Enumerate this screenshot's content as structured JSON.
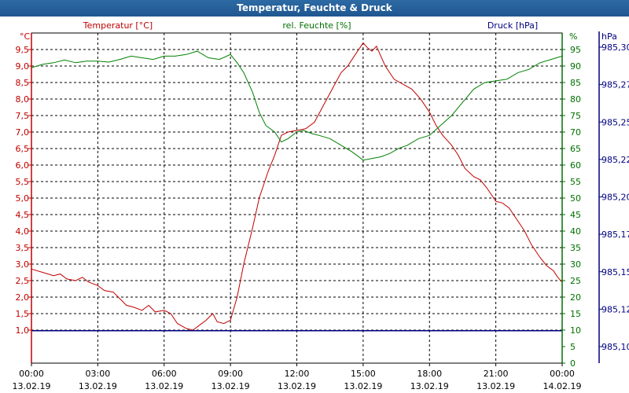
{
  "window": {
    "title": "Temperatur, Feuchte & Druck"
  },
  "colors": {
    "temperature": "#c00000",
    "humidity": "#008000",
    "pressure": "#000080",
    "titlebar": "#1f5690"
  },
  "chart_data": {
    "type": "line",
    "title": "Temperatur, Feuchte & Druck",
    "x_ticks": [
      {
        "time": "00:00",
        "date": "13.02.19"
      },
      {
        "time": "03:00",
        "date": "13.02.19"
      },
      {
        "time": "06:00",
        "date": "13.02.19"
      },
      {
        "time": "09:00",
        "date": "13.02.19"
      },
      {
        "time": "12:00",
        "date": "13.02.19"
      },
      {
        "time": "15:00",
        "date": "13.02.19"
      },
      {
        "time": "18:00",
        "date": "13.02.19"
      },
      {
        "time": "21:00",
        "date": "13.02.19"
      },
      {
        "time": "00:00",
        "date": "14.02.19"
      }
    ],
    "xlim_hours": [
      0,
      24
    ],
    "grid": true,
    "axes": {
      "temperature": {
        "label": "Temperatur [°C]",
        "unit": "°C",
        "ylim": [
          0.0,
          10.0
        ],
        "ticks": [
          "1,0",
          "1,5",
          "2,0",
          "2,5",
          "3,0",
          "3,5",
          "4,0",
          "4,5",
          "5,0",
          "5,5",
          "6,0",
          "6,5",
          "7,0",
          "7,5",
          "8,0",
          "8,5",
          "9,0",
          "9,5"
        ]
      },
      "humidity": {
        "label": "rel. Feuchte [%]",
        "unit": "%",
        "ylim": [
          0,
          100
        ],
        "ticks": [
          "0",
          "5",
          "10",
          "15",
          "20",
          "25",
          "30",
          "35",
          "40",
          "45",
          "50",
          "55",
          "60",
          "65",
          "70",
          "75",
          "80",
          "85",
          "90",
          "95"
        ]
      },
      "pressure": {
        "label": "Druck [hPa]",
        "unit": "hPa",
        "ticks": [
          "985,10",
          "985,12",
          "985,15",
          "985,17",
          "985,20",
          "985,22",
          "985,25",
          "985,27",
          "985,30"
        ]
      }
    },
    "series": [
      {
        "name": "Temperatur [°C]",
        "axis": "temperature",
        "color": "#c00000",
        "points": [
          [
            0,
            2.85
          ],
          [
            0.5,
            2.75
          ],
          [
            1,
            2.65
          ],
          [
            1.3,
            2.7
          ],
          [
            1.6,
            2.55
          ],
          [
            2,
            2.5
          ],
          [
            2.3,
            2.6
          ],
          [
            2.6,
            2.45
          ],
          [
            3,
            2.35
          ],
          [
            3.3,
            2.2
          ],
          [
            3.7,
            2.15
          ],
          [
            4,
            1.95
          ],
          [
            4.3,
            1.75
          ],
          [
            4.6,
            1.7
          ],
          [
            5,
            1.6
          ],
          [
            5.3,
            1.75
          ],
          [
            5.6,
            1.55
          ],
          [
            6,
            1.6
          ],
          [
            6.3,
            1.5
          ],
          [
            6.6,
            1.2
          ],
          [
            7,
            1.05
          ],
          [
            7.3,
            1.0
          ],
          [
            7.6,
            1.15
          ],
          [
            7.9,
            1.3
          ],
          [
            8.2,
            1.5
          ],
          [
            8.4,
            1.25
          ],
          [
            8.7,
            1.2
          ],
          [
            9,
            1.3
          ],
          [
            9.3,
            2.0
          ],
          [
            9.6,
            3.0
          ],
          [
            10,
            4.1
          ],
          [
            10.3,
            5.0
          ],
          [
            10.7,
            5.8
          ],
          [
            11,
            6.3
          ],
          [
            11.3,
            6.9
          ],
          [
            11.6,
            7.0
          ],
          [
            12,
            7.05
          ],
          [
            12.4,
            7.1
          ],
          [
            12.8,
            7.3
          ],
          [
            13.2,
            7.8
          ],
          [
            13.6,
            8.3
          ],
          [
            14,
            8.8
          ],
          [
            14.3,
            9.0
          ],
          [
            14.7,
            9.4
          ],
          [
            15,
            9.7
          ],
          [
            15.2,
            9.55
          ],
          [
            15.4,
            9.45
          ],
          [
            15.6,
            9.6
          ],
          [
            15.8,
            9.3
          ],
          [
            16,
            9.0
          ],
          [
            16.4,
            8.6
          ],
          [
            16.8,
            8.45
          ],
          [
            17.2,
            8.3
          ],
          [
            17.6,
            8.0
          ],
          [
            18,
            7.6
          ],
          [
            18.3,
            7.2
          ],
          [
            18.6,
            6.9
          ],
          [
            19,
            6.6
          ],
          [
            19.3,
            6.3
          ],
          [
            19.6,
            5.9
          ],
          [
            20,
            5.65
          ],
          [
            20.3,
            5.55
          ],
          [
            20.6,
            5.3
          ],
          [
            21,
            4.9
          ],
          [
            21.3,
            4.85
          ],
          [
            21.6,
            4.7
          ],
          [
            22,
            4.3
          ],
          [
            22.3,
            4.0
          ],
          [
            22.6,
            3.6
          ],
          [
            23,
            3.2
          ],
          [
            23.3,
            2.95
          ],
          [
            23.6,
            2.8
          ],
          [
            23.8,
            2.6
          ],
          [
            24,
            2.45
          ]
        ]
      },
      {
        "name": "rel. Feuchte [%]",
        "axis": "humidity",
        "color": "#008000",
        "points": [
          [
            0,
            89.5
          ],
          [
            0.5,
            90.5
          ],
          [
            1,
            91
          ],
          [
            1.5,
            91.8
          ],
          [
            2,
            91
          ],
          [
            2.5,
            91.5
          ],
          [
            3,
            91.5
          ],
          [
            3.5,
            91.2
          ],
          [
            4,
            92
          ],
          [
            4.5,
            93
          ],
          [
            5,
            92.5
          ],
          [
            5.5,
            92
          ],
          [
            6,
            93
          ],
          [
            6.5,
            93
          ],
          [
            7,
            93.5
          ],
          [
            7.5,
            94.5
          ],
          [
            8,
            92.5
          ],
          [
            8.5,
            92
          ],
          [
            9,
            93.5
          ],
          [
            9.3,
            91
          ],
          [
            9.6,
            88
          ],
          [
            10,
            82
          ],
          [
            10.3,
            76
          ],
          [
            10.6,
            72
          ],
          [
            11,
            70
          ],
          [
            11.3,
            67
          ],
          [
            11.6,
            68
          ],
          [
            12,
            70
          ],
          [
            12.3,
            70.5
          ],
          [
            12.7,
            69.5
          ],
          [
            13,
            69
          ],
          [
            13.5,
            68
          ],
          [
            14,
            66
          ],
          [
            14.5,
            64
          ],
          [
            15,
            61.5
          ],
          [
            15.4,
            62
          ],
          [
            15.8,
            62.5
          ],
          [
            16.2,
            63.5
          ],
          [
            16.6,
            65
          ],
          [
            17,
            66
          ],
          [
            17.5,
            68
          ],
          [
            18,
            69
          ],
          [
            18.5,
            72
          ],
          [
            19,
            75
          ],
          [
            19.5,
            79
          ],
          [
            20,
            83
          ],
          [
            20.5,
            85
          ],
          [
            21,
            85.5
          ],
          [
            21.5,
            86
          ],
          [
            22,
            88
          ],
          [
            22.5,
            89
          ],
          [
            23,
            91
          ],
          [
            23.5,
            92
          ],
          [
            24,
            93
          ]
        ]
      },
      {
        "name": "Druck [hPa]",
        "axis": "temperature",
        "color": "#000080",
        "points": [
          [
            0,
            0.98
          ],
          [
            24,
            0.98
          ]
        ]
      }
    ]
  }
}
